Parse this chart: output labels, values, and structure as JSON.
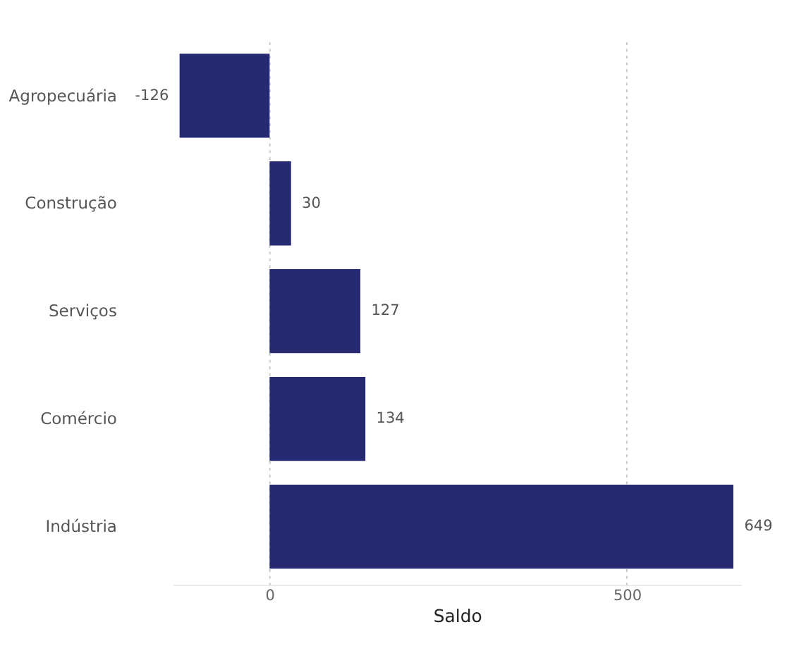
{
  "chart_data": {
    "type": "bar",
    "orientation": "horizontal",
    "xlabel": "Saldo",
    "categories": [
      "Agropecuária",
      "Construção",
      "Serviços",
      "Comércio",
      "Indústria"
    ],
    "values": [
      -126,
      30,
      127,
      134,
      649
    ],
    "color": "#262a73",
    "xlim": [
      -135,
      660
    ],
    "xticks": [
      0,
      500
    ],
    "grid": "x",
    "data_labels": true
  }
}
